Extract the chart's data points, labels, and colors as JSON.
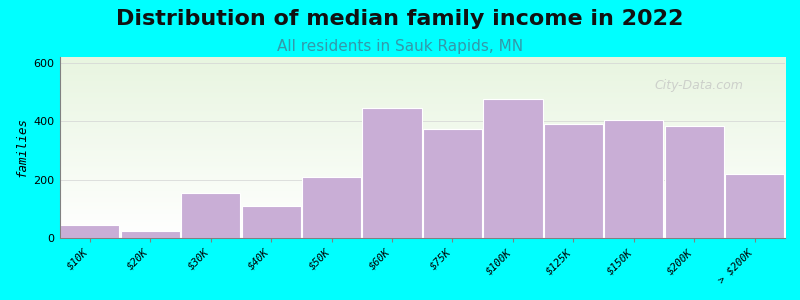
{
  "title": "Distribution of median family income in 2022",
  "subtitle": "All residents in Sauk Rapids, MN",
  "xlabel": "",
  "ylabel": "families",
  "categories": [
    "$10K",
    "$20K",
    "$30K",
    "$40K",
    "$50K",
    "$60K",
    "$75K",
    "$100K",
    "$125K",
    "$150K",
    "$200K",
    "> $200K"
  ],
  "values": [
    45,
    25,
    155,
    110,
    210,
    445,
    375,
    475,
    390,
    405,
    385,
    220
  ],
  "bar_color": "#c9aed6",
  "bar_edge_color": "#ffffff",
  "ylim": [
    0,
    620
  ],
  "yticks": [
    0,
    200,
    400,
    600
  ],
  "background_color": "#00ffff",
  "plot_bg_gradient_top": "#e8f5e0",
  "plot_bg_gradient_bottom": "#ffffff",
  "title_fontsize": 16,
  "subtitle_fontsize": 11,
  "subtitle_color": "#3399aa",
  "ylabel_fontsize": 9,
  "tick_label_fontsize": 7.5,
  "watermark_text": "City-Data.com",
  "watermark_color": "#c0c0c0"
}
